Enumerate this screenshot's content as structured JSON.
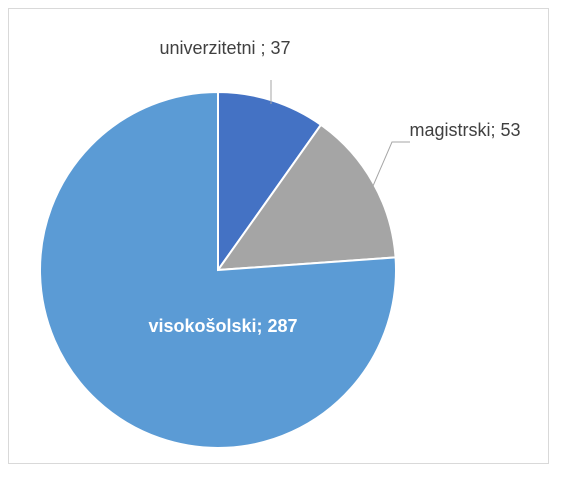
{
  "chart_data": {
    "type": "pie",
    "values": [
      37,
      53,
      287
    ],
    "value_labels": [
      "univerzitetni ; 37",
      "magistrski; 53",
      "visokošolski; 287"
    ],
    "colors": [
      "#4472c4",
      "#a5a5a5",
      "#5b9bd5"
    ],
    "start_angle": 0,
    "direction": "clockwise"
  }
}
